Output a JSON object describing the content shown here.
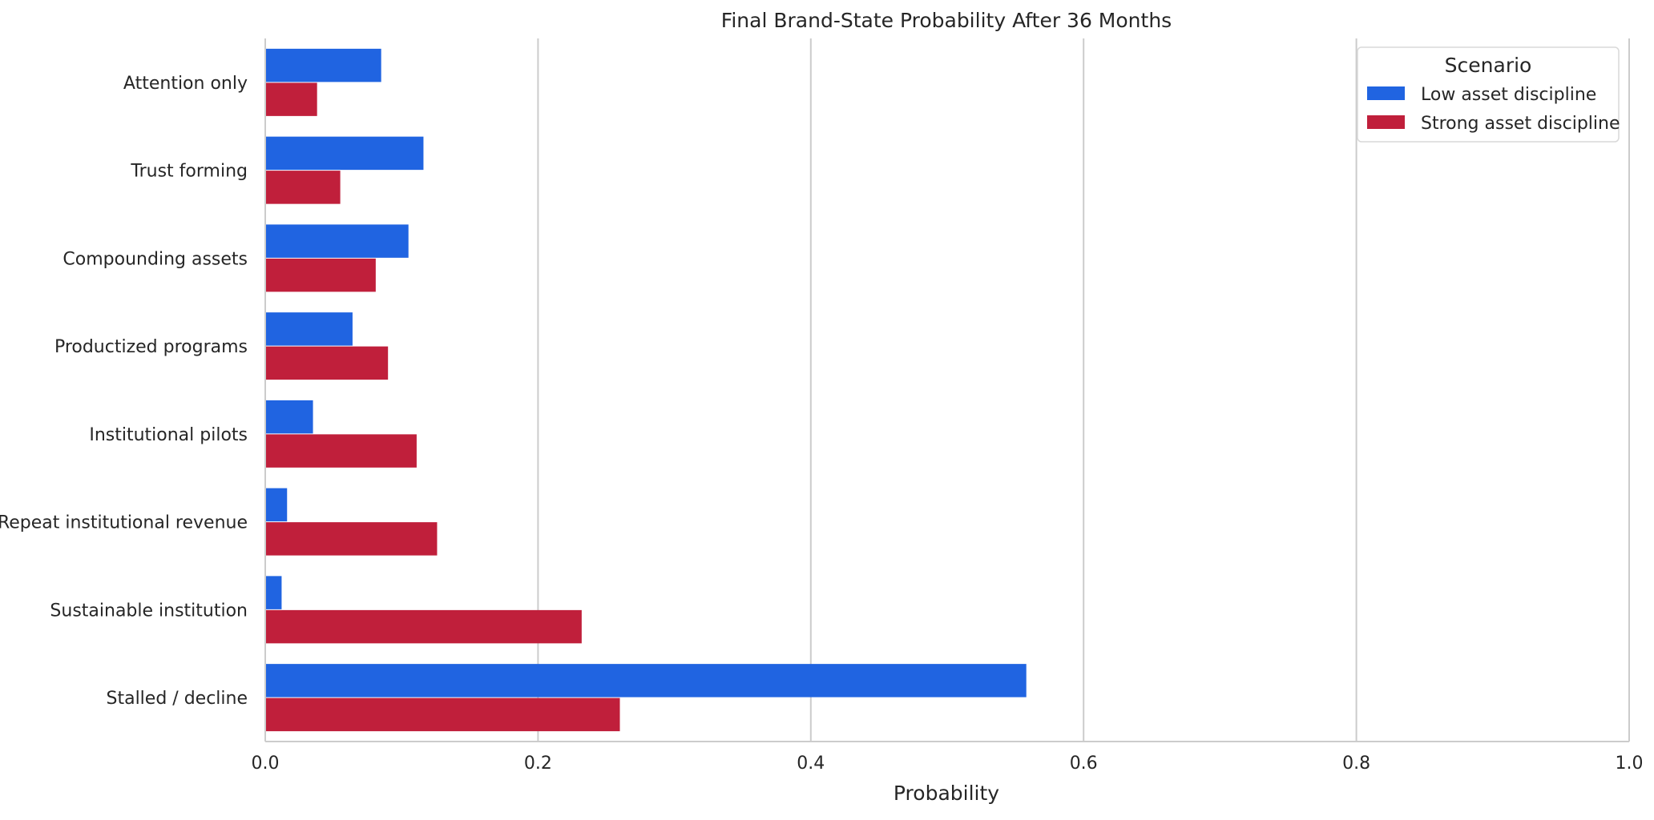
{
  "chart_data": {
    "type": "bar",
    "orientation": "horizontal",
    "title": "Final Brand-State Probability After 36 Months",
    "xlabel": "Probability",
    "ylabel": "",
    "xlim": [
      0.0,
      1.0
    ],
    "xticks": [
      "0.0",
      "0.2",
      "0.4",
      "0.6",
      "0.8",
      "1.0"
    ],
    "xtick_values": [
      0.0,
      0.2,
      0.4,
      0.6,
      0.8,
      1.0
    ],
    "grid": "vertical",
    "categories": [
      "Attention only",
      "Trust forming",
      "Compounding assets",
      "Productized programs",
      "Institutional pilots",
      "Repeat institutional revenue",
      "Sustainable institution",
      "Stalled / decline"
    ],
    "series": [
      {
        "name": "Low asset discipline",
        "color": "#2064e1",
        "values": [
          0.085,
          0.116,
          0.105,
          0.064,
          0.035,
          0.016,
          0.012,
          0.558
        ]
      },
      {
        "name": "Strong asset discipline",
        "color": "#c01f3b",
        "values": [
          0.038,
          0.055,
          0.081,
          0.09,
          0.111,
          0.126,
          0.232,
          0.26
        ]
      }
    ],
    "legend": {
      "title": "Scenario",
      "placement": "top-right"
    }
  }
}
